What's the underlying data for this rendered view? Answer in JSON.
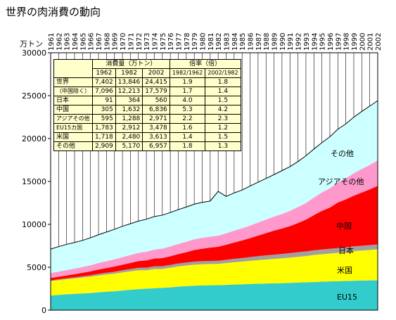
{
  "title": "世界の肉消費の動向",
  "chart_data": {
    "type": "area",
    "stacked": true,
    "title": "世界の肉消費の動向",
    "ylabel": "万トン",
    "ylim": [
      0,
      30000
    ],
    "yticks": [
      0,
      5000,
      10000,
      15000,
      20000,
      25000,
      30000
    ],
    "years": [
      1961,
      1962,
      1963,
      1964,
      1965,
      1966,
      1967,
      1968,
      1969,
      1970,
      1971,
      1972,
      1973,
      1974,
      1975,
      1976,
      1977,
      1978,
      1979,
      1980,
      1981,
      1982,
      1983,
      1984,
      1985,
      1986,
      1987,
      1988,
      1989,
      1990,
      1991,
      1992,
      1993,
      1994,
      1995,
      1996,
      1997,
      1998,
      1999,
      2000,
      2001,
      2002
    ],
    "grid": "vertical",
    "series": [
      {
        "name": "EU15",
        "color": "#33cccc",
        "values": [
          1700,
          1783,
          1850,
          1900,
          1950,
          2000,
          2080,
          2150,
          2200,
          2300,
          2380,
          2450,
          2500,
          2550,
          2600,
          2650,
          2750,
          2800,
          2850,
          2880,
          2900,
          2912,
          2940,
          2980,
          3010,
          3050,
          3080,
          3100,
          3120,
          3150,
          3180,
          3220,
          3250,
          3280,
          3320,
          3350,
          3380,
          3400,
          3430,
          3450,
          3470,
          3478
        ]
      },
      {
        "name": "米国",
        "color": "#ffff00",
        "values": [
          1680,
          1718,
          1760,
          1800,
          1850,
          1900,
          1960,
          2000,
          2050,
          2100,
          2150,
          2200,
          2150,
          2250,
          2200,
          2300,
          2350,
          2400,
          2450,
          2470,
          2475,
          2480,
          2550,
          2600,
          2650,
          2700,
          2750,
          2800,
          2850,
          2900,
          2950,
          3000,
          3050,
          3150,
          3200,
          3250,
          3300,
          3350,
          3450,
          3500,
          3550,
          3613
        ]
      },
      {
        "name": "日本",
        "color": "#a0a0a0",
        "values": [
          80,
          91,
          110,
          130,
          150,
          170,
          190,
          210,
          230,
          250,
          270,
          290,
          300,
          310,
          320,
          330,
          340,
          350,
          355,
          360,
          362,
          364,
          380,
          400,
          420,
          440,
          460,
          480,
          500,
          510,
          520,
          530,
          540,
          545,
          550,
          555,
          558,
          560,
          560,
          560,
          560,
          560
        ]
      },
      {
        "name": "中国",
        "color": "#ff0000",
        "values": [
          290,
          305,
          330,
          360,
          400,
          450,
          500,
          550,
          600,
          650,
          700,
          780,
          850,
          900,
          950,
          1000,
          1100,
          1200,
          1350,
          1450,
          1550,
          1632,
          1750,
          1900,
          2050,
          2200,
          2400,
          2600,
          2800,
          2950,
          3150,
          3400,
          3700,
          4100,
          4500,
          4800,
          5300,
          5600,
          5900,
          6200,
          6500,
          6836
        ]
      },
      {
        "name": "アジアその他",
        "color": "#ff99cc",
        "values": [
          570,
          595,
          620,
          650,
          680,
          720,
          760,
          800,
          840,
          880,
          920,
          960,
          1000,
          1050,
          1100,
          1150,
          1180,
          1220,
          1250,
          1270,
          1280,
          1288,
          1330,
          1380,
          1420,
          1470,
          1520,
          1570,
          1630,
          1700,
          1780,
          1870,
          1950,
          2050,
          2150,
          2250,
          2350,
          2450,
          2600,
          2750,
          2850,
          2971
        ]
      },
      {
        "name": "その他",
        "color": "#ccffff",
        "values": [
          2800,
          2909,
          3000,
          3050,
          3100,
          3200,
          3300,
          3400,
          3500,
          3600,
          3650,
          3700,
          3800,
          3850,
          3900,
          3950,
          4000,
          4050,
          4100,
          4130,
          4150,
          5170,
          4300,
          4400,
          4450,
          4600,
          4700,
          4800,
          4900,
          5050,
          5150,
          5300,
          5500,
          5650,
          5800,
          6000,
          6200,
          6350,
          6550,
          6700,
          6850,
          6957
        ]
      }
    ],
    "series_labels": [
      "その他",
      "アジアその他",
      "中国",
      "日本",
      "米国",
      "EU15"
    ]
  },
  "table": {
    "col_group_1": "消費量（万トン）",
    "col_group_2": "倍率（倍）",
    "sub_headers": [
      "1962",
      "1982",
      "2002",
      "1982/1962",
      "2002/1982"
    ],
    "rows": [
      {
        "label": "世界",
        "v1962": "7,402",
        "v1982": "13,846",
        "v2002": "24,415",
        "r1": "1.9",
        "r2": "1.8"
      },
      {
        "label": "（中国除く）",
        "v1962": "7,096",
        "v1982": "12,213",
        "v2002": "17,579",
        "r1": "1.7",
        "r2": "1.4"
      },
      {
        "label": "日本",
        "v1962": "91",
        "v1982": "364",
        "v2002": "560",
        "r1": "4.0",
        "r2": "1.5"
      },
      {
        "label": "中国",
        "v1962": "305",
        "v1982": "1,632",
        "v2002": "6,836",
        "r1": "5.3",
        "r2": "4.2"
      },
      {
        "label": "アジアその他",
        "v1962": "595",
        "v1982": "1,288",
        "v2002": "2,971",
        "r1": "2.2",
        "r2": "2.3"
      },
      {
        "label": "EU15カ国",
        "v1962": "1,783",
        "v1982": "2,912",
        "v2002": "3,478",
        "r1": "1.6",
        "r2": "1.2"
      },
      {
        "label": "米国",
        "v1962": "1,718",
        "v1982": "2,480",
        "v2002": "3,613",
        "r1": "1.4",
        "r2": "1.5"
      },
      {
        "label": "その他",
        "v1962": "2,909",
        "v1982": "5,170",
        "v2002": "6,957",
        "r1": "1.8",
        "r2": "1.3"
      }
    ]
  }
}
